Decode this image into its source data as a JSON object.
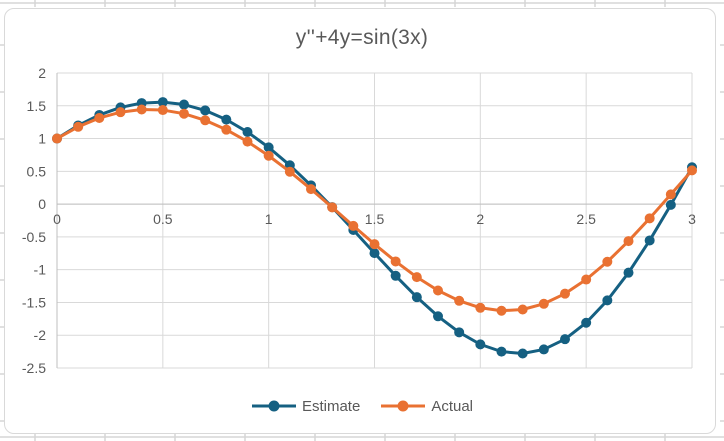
{
  "chart_data": {
    "type": "line",
    "title": "y''+4y=sin(3x)",
    "xlabel": "",
    "ylabel": "",
    "xlim": [
      0,
      3
    ],
    "ylim": [
      -2.5,
      2
    ],
    "grid": true,
    "legend_position": "bottom",
    "marker": "circle",
    "x": [
      0,
      0.1,
      0.2,
      0.3,
      0.4,
      0.5,
      0.6,
      0.7,
      0.8,
      0.9,
      1.0,
      1.1,
      1.2,
      1.3,
      1.4,
      1.5,
      1.6,
      1.7,
      1.8,
      1.9,
      2.0,
      2.1,
      2.2,
      2.3,
      2.4,
      2.5,
      2.6,
      2.7,
      2.8,
      2.9,
      3.0
    ],
    "series": [
      {
        "name": "Estimate",
        "color": "#156082",
        "values": [
          1,
          1.2,
          1.36,
          1.475,
          1.5412,
          1.5562,
          1.5189,
          1.4294,
          1.2888,
          1.0996,
          0.8657,
          0.5921,
          0.2852,
          -0.0469,
          -0.3948,
          -0.7478,
          -1.0936,
          -1.4194,
          -1.7113,
          -1.9557,
          -2.1395,
          -2.2505,
          -2.2787,
          -2.2167,
          -2.0604,
          -1.8097,
          -1.4687,
          -1.0459,
          -0.5543,
          -0.0113,
          0.5626
        ]
      },
      {
        "name": "Actual",
        "color": "#E97132",
        "values": [
          1,
          1.1792,
          1.3144,
          1.4027,
          1.4429,
          1.4348,
          1.3793,
          1.2785,
          1.1353,
          0.9533,
          0.7377,
          0.4941,
          0.2292,
          -0.049,
          -0.3327,
          -0.611,
          -0.8749,
          -1.1141,
          -1.3175,
          -1.4748,
          -1.5816,
          -1.6267,
          -1.6077,
          -1.5205,
          -1.3662,
          -1.1505,
          -0.8792,
          -0.5639,
          -0.2167,
          0.1479,
          0.5145
        ]
      }
    ],
    "xticks": [
      0,
      0.5,
      1,
      1.5,
      2,
      2.5,
      3
    ],
    "xtick_labels": [
      "0",
      "0.5",
      "1",
      "1.5",
      "2",
      "2.5",
      "3"
    ],
    "yticks": [
      2,
      1.5,
      1,
      0.5,
      0,
      -0.5,
      -1,
      -1.5,
      -2,
      -2.5
    ],
    "ytick_labels": [
      "2",
      "1.5",
      "1",
      "0.5",
      "0",
      "-0.5",
      "-1",
      "-1.5",
      "-2",
      "-2.5"
    ]
  },
  "colors": {
    "title_text": "#595959",
    "tick_text": "#595959",
    "gridline": "#D9D9D9",
    "axis_line": "#BFBFBF",
    "chart_border": "#D9D9D9",
    "sheet_gridline": "#D6D6D6",
    "series_estimate": "#156082",
    "series_actual": "#E97132"
  }
}
